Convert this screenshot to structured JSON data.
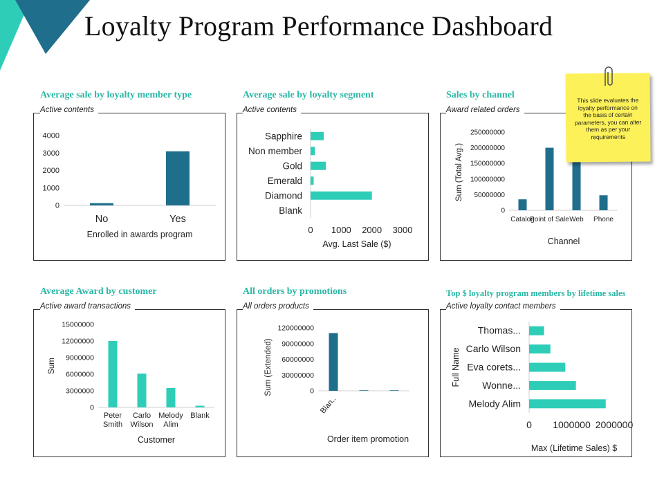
{
  "page": {
    "title": "Loyalty Program Performance Dashboard",
    "colors": {
      "dark_bar": "#1f6e8c",
      "teal_bar": "#2ecdb8",
      "title_teal": "#2ab7a6",
      "note_yellow": "#fdf15a",
      "corner_dark": "#1f6e8c",
      "corner_teal": "#2ecdb8"
    }
  },
  "note": {
    "text": "This slide evaluates the loyalty performance on the basis of certain parameters, you can alter them as per your requirements",
    "icon": "paperclip-icon"
  },
  "panels": [
    {
      "title": "Average sale by loyalty member type",
      "subtitle": "Active contents"
    },
    {
      "title": "Average sale by loyalty segment",
      "subtitle": "Active contents"
    },
    {
      "title": "Sales by channel",
      "subtitle": "Award related orders"
    },
    {
      "title": "Average Award by customer",
      "subtitle": "Active award transactions"
    },
    {
      "title": "All orders by promotions",
      "subtitle": "All orders products"
    },
    {
      "title": "Top $ loyalty program members by lifetime sales",
      "subtitle": "Active loyalty contact members"
    }
  ],
  "chart_data": [
    {
      "type": "bar",
      "categories": [
        "No",
        "Yes"
      ],
      "values": [
        130,
        3100
      ],
      "yticks": [
        "0",
        "1000",
        "2000",
        "3000",
        "4000"
      ],
      "ylim": [
        0,
        4000
      ],
      "xlabel": "Enrolled in awards program",
      "ylabel": ""
    },
    {
      "type": "bar",
      "orientation": "horizontal",
      "categories": [
        "Sapphire",
        "Non member",
        "Gold",
        "Emerald",
        "Diamond",
        "Blank"
      ],
      "values": [
        430,
        140,
        500,
        100,
        2000,
        0
      ],
      "xticks": [
        "0",
        "1000",
        "2000",
        "3000"
      ],
      "xlim": [
        0,
        3000
      ],
      "xlabel": "Avg. Last Sale ($)",
      "ylabel": ""
    },
    {
      "type": "bar",
      "categories": [
        "Catalog",
        "Point of Sale",
        "Web",
        "Phone"
      ],
      "values": [
        35000000,
        200000000,
        160000000,
        48000000
      ],
      "yticks": [
        "0",
        "50000000",
        "100000000",
        "150000000",
        "200000000",
        "250000000"
      ],
      "ylim": [
        0,
        250000000
      ],
      "xlabel": "Channel",
      "ylabel": "Sum (Total Avg.)"
    },
    {
      "type": "bar",
      "categories": [
        "Peter Smith",
        "Carlo Wilson",
        "Melody Alim",
        "Blank"
      ],
      "values": [
        12000000,
        6100000,
        3500000,
        300000
      ],
      "yticks": [
        "0",
        "3000000",
        "6000000",
        "9000000",
        "12000000",
        "15000000"
      ],
      "ylim": [
        0,
        15000000
      ],
      "xlabel": "Customer",
      "ylabel": "Sum"
    },
    {
      "type": "bar",
      "categories": [
        "Blan..",
        "",
        ""
      ],
      "values": [
        110000000,
        1000000,
        1000000
      ],
      "yticks": [
        "0",
        "30000000",
        "60000000",
        "90000000",
        "120000000"
      ],
      "ylim": [
        0,
        120000000
      ],
      "xlabel": "Order item promotion",
      "ylabel": "Sum (Extended)"
    },
    {
      "type": "bar",
      "orientation": "horizontal",
      "categories": [
        "Thomas...",
        "Carlo Wilson",
        "Eva corets...",
        "Wonne...",
        "Melody Alim"
      ],
      "values": [
        350000,
        500000,
        850000,
        1100000,
        1800000
      ],
      "xticks": [
        "0",
        "1000000",
        "2000000"
      ],
      "xlim": [
        0,
        2000000
      ],
      "xlabel": "Max (Lifetime Sales) $",
      "ylabel": "Full Name"
    }
  ]
}
